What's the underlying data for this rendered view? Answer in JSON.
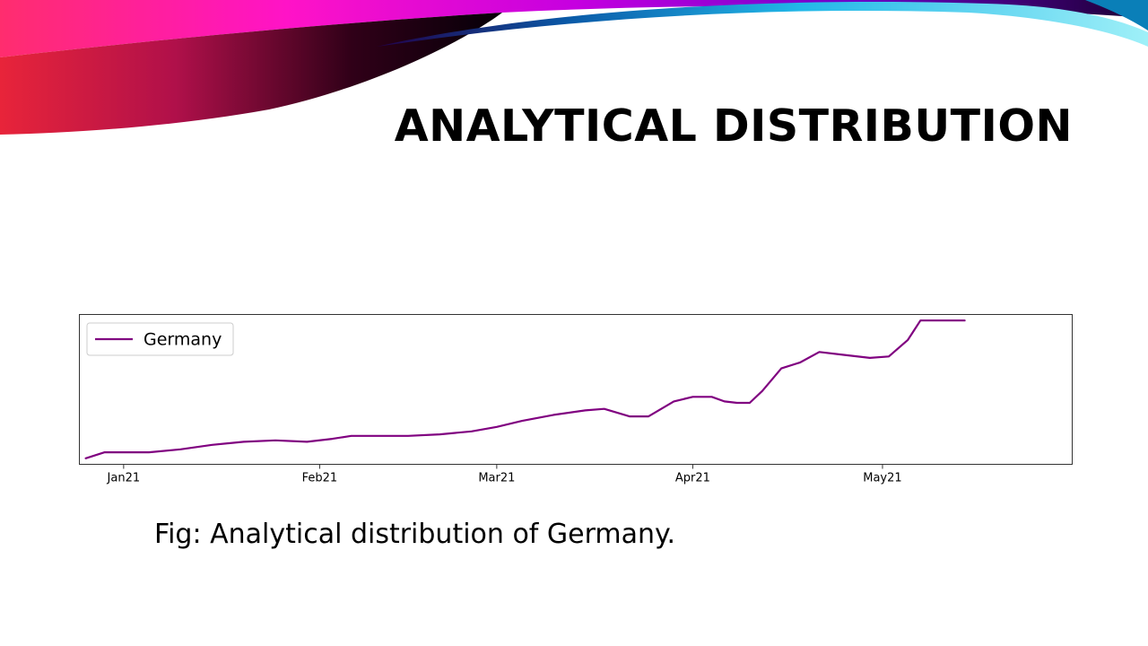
{
  "slide": {
    "title": "ANALYTICAL DISTRIBUTION",
    "caption": "Fig: Analytical distribution of Germany."
  },
  "colors": {
    "series_line": "#800080",
    "axis": "#333333",
    "banner_magenta": "#ff00ff",
    "banner_cyan": "#00ccee"
  },
  "chart_data": {
    "type": "line",
    "title": "",
    "xlabel": "",
    "ylabel": "",
    "legend_position": "top-left",
    "grid": false,
    "y_ticks_shown": false,
    "x_ticks": [
      {
        "label": "Jan21",
        "date": "2021-01-01"
      },
      {
        "label": "Feb21",
        "date": "2021-02-01"
      },
      {
        "label": "Mar21",
        "date": "2021-03-01"
      },
      {
        "label": "Apr21",
        "date": "2021-04-01"
      },
      {
        "label": "May21",
        "date": "2021-05-01"
      }
    ],
    "xlim": [
      "2020-12-25",
      "2021-05-31"
    ],
    "ylim": [
      0,
      100
    ],
    "series": [
      {
        "name": "Germany",
        "color": "#800080",
        "points": [
          {
            "x": "2020-12-26",
            "y": 4
          },
          {
            "x": "2020-12-29",
            "y": 8
          },
          {
            "x": "2021-01-01",
            "y": 8
          },
          {
            "x": "2021-01-05",
            "y": 8
          },
          {
            "x": "2021-01-10",
            "y": 10
          },
          {
            "x": "2021-01-15",
            "y": 13
          },
          {
            "x": "2021-01-20",
            "y": 15
          },
          {
            "x": "2021-01-25",
            "y": 16
          },
          {
            "x": "2021-01-30",
            "y": 15
          },
          {
            "x": "2021-02-03",
            "y": 17
          },
          {
            "x": "2021-02-06",
            "y": 19
          },
          {
            "x": "2021-02-10",
            "y": 19
          },
          {
            "x": "2021-02-15",
            "y": 19
          },
          {
            "x": "2021-02-20",
            "y": 20
          },
          {
            "x": "2021-02-25",
            "y": 22
          },
          {
            "x": "2021-03-01",
            "y": 25
          },
          {
            "x": "2021-03-05",
            "y": 29
          },
          {
            "x": "2021-03-10",
            "y": 33
          },
          {
            "x": "2021-03-15",
            "y": 36
          },
          {
            "x": "2021-03-18",
            "y": 37
          },
          {
            "x": "2021-03-22",
            "y": 32
          },
          {
            "x": "2021-03-25",
            "y": 32
          },
          {
            "x": "2021-03-29",
            "y": 42
          },
          {
            "x": "2021-04-01",
            "y": 45
          },
          {
            "x": "2021-04-04",
            "y": 45
          },
          {
            "x": "2021-04-06",
            "y": 42
          },
          {
            "x": "2021-04-08",
            "y": 41
          },
          {
            "x": "2021-04-10",
            "y": 41
          },
          {
            "x": "2021-04-12",
            "y": 49
          },
          {
            "x": "2021-04-15",
            "y": 64
          },
          {
            "x": "2021-04-18",
            "y": 68
          },
          {
            "x": "2021-04-21",
            "y": 75
          },
          {
            "x": "2021-04-25",
            "y": 73
          },
          {
            "x": "2021-04-29",
            "y": 71
          },
          {
            "x": "2021-05-02",
            "y": 72
          },
          {
            "x": "2021-05-05",
            "y": 83
          },
          {
            "x": "2021-05-07",
            "y": 96
          },
          {
            "x": "2021-05-10",
            "y": 96
          },
          {
            "x": "2021-05-14",
            "y": 96
          }
        ]
      }
    ]
  }
}
